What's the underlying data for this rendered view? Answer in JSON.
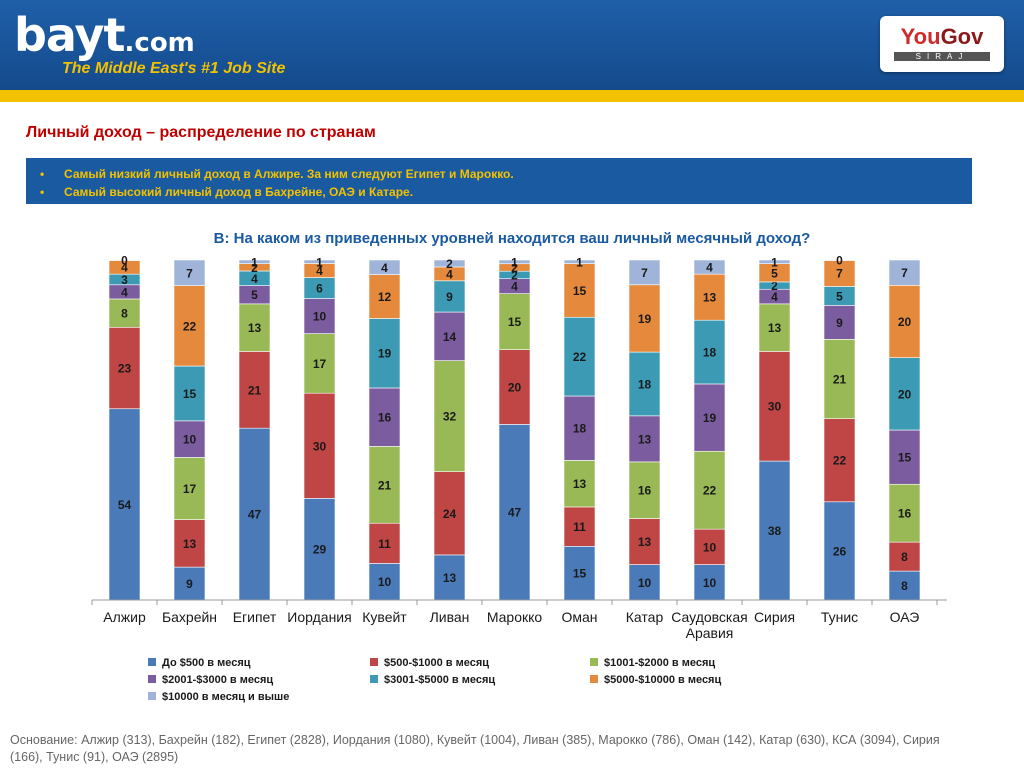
{
  "header": {
    "logo_text": "bayt",
    "logo_suffix": ".com",
    "tagline": "The Middle East's #1 Job Site",
    "partner_name_a": "You",
    "partner_name_b": "Gov",
    "partner_sub": "SIRAJ"
  },
  "page": {
    "title": "Личный доход – распределение по странам",
    "bullets": [
      "Самый низкий личный доход в Алжире. За ним следуют Египет и Марокко.",
      "Самый высокий личный доход в Бахрейне, ОАЭ и Катаре."
    ],
    "question": "В: На каком из приведенных уровней находится ваш личный месячный доход?",
    "basis": "Основание:  Алжир (313), Бахрейн (182), Египет (2828), Иордания (1080), Кувейт (1004), Ливан (385), Марокко (786), Оман (142), Катар (630),  КСА (3094), Сирия (166), Тунис (91), ОАЭ (2895)"
  },
  "chart_data": {
    "type": "bar",
    "stacked": true,
    "categories": [
      "Алжир",
      "Бахрейн",
      "Египет",
      "Иордания",
      "Кувейт",
      "Ливан",
      "Марокко",
      "Оман",
      "Катар",
      "Саудовская Аравия",
      "Сирия",
      "Тунис",
      "ОАЭ"
    ],
    "series": [
      {
        "name": "До $500 в месяц",
        "color": "#4a7ab8",
        "values": [
          54,
          9,
          47,
          29,
          10,
          13,
          47,
          15,
          10,
          10,
          38,
          26,
          8
        ]
      },
      {
        "name": "$500-$1000 в месяц",
        "color": "#c04545",
        "values": [
          23,
          13,
          21,
          30,
          11,
          24,
          20,
          11,
          13,
          10,
          30,
          22,
          8
        ]
      },
      {
        "name": "$1001-$2000 в месяц",
        "color": "#98b955",
        "values": [
          8,
          17,
          13,
          17,
          21,
          32,
          15,
          13,
          16,
          22,
          13,
          21,
          16
        ]
      },
      {
        "name": "$2001-$3000 в месяц",
        "color": "#7b5c9e",
        "values": [
          4,
          10,
          5,
          10,
          16,
          14,
          4,
          18,
          13,
          19,
          4,
          9,
          15
        ]
      },
      {
        "name": "$3001-$5000 в месяц",
        "color": "#3d9ab4",
        "values": [
          3,
          15,
          4,
          6,
          19,
          9,
          2,
          22,
          18,
          18,
          2,
          5,
          20
        ]
      },
      {
        "name": "$5000-$10000 в месяц",
        "color": "#e58a3c",
        "values": [
          4,
          22,
          2,
          4,
          12,
          4,
          2,
          15,
          19,
          13,
          5,
          7,
          20
        ]
      },
      {
        "name": "$10000 в месяц и выше",
        "color": "#9fb4d8",
        "values": [
          0,
          7,
          1,
          1,
          4,
          2,
          1,
          1,
          7,
          4,
          1,
          0,
          7
        ]
      }
    ],
    "ylim": [
      0,
      100
    ],
    "legend_position": "bottom"
  }
}
